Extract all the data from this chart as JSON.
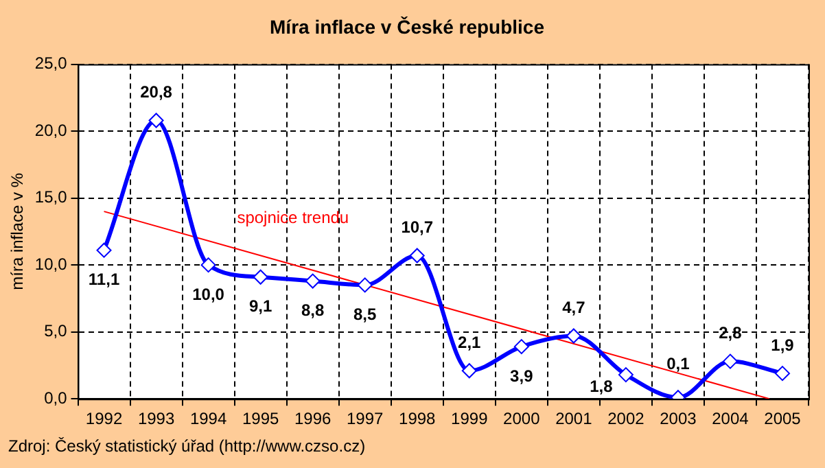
{
  "chart_data": {
    "type": "line",
    "title": "Míra inflace v České republice",
    "ylabel": "míra inflace v %",
    "x": [
      1992,
      1993,
      1994,
      1995,
      1996,
      1997,
      1998,
      1999,
      2000,
      2001,
      2002,
      2003,
      2004,
      2005
    ],
    "series": [
      {
        "color": "#0000ff",
        "values": [
          11.1,
          20.8,
          10.0,
          9.1,
          8.8,
          8.5,
          10.7,
          2.1,
          3.9,
          4.7,
          1.8,
          0.1,
          2.8,
          1.9
        ],
        "value_labels": [
          "11,1",
          "20,8",
          "10,0",
          "9,1",
          "8,8",
          "8,5",
          "10,7",
          "2,1",
          "3,9",
          "4,7",
          "1,8",
          "0,1",
          "2,8",
          "1,9"
        ],
        "marker": "diamond",
        "line_style": "solid"
      },
      {
        "name": "spojnice trendu",
        "color": "#ff0000",
        "x": [
          1992,
          2004.75
        ],
        "values": [
          14.0,
          0.0
        ],
        "marker": "none",
        "line_style": "solid"
      }
    ],
    "xlim": [
      1991.5,
      2005.5
    ],
    "xticks": [
      {
        "value": 1991.5,
        "label": null
      },
      1992,
      {
        "value": 1992.5,
        "label": null
      },
      1993,
      {
        "value": 1993.5,
        "label": null
      },
      1994,
      {
        "value": 1994.5,
        "label": null
      },
      1995,
      {
        "value": 1995.5,
        "label": null
      },
      1996,
      {
        "value": 1996.5,
        "label": null
      },
      1997,
      {
        "value": 1997.5,
        "label": null
      },
      1998,
      {
        "value": 1998.5,
        "label": null
      },
      1999,
      {
        "value": 1999.5,
        "label": null
      },
      2000,
      {
        "value": 2000.5,
        "label": null
      },
      2001,
      {
        "value": 2001.5,
        "label": null
      },
      2002,
      {
        "value": 2002.5,
        "label": null
      },
      2003,
      {
        "value": 2003.5,
        "label": null
      },
      2004,
      {
        "value": 2004.5,
        "label": null
      },
      2005,
      {
        "value": 2005.5,
        "label": null
      }
    ],
    "ylim": [
      0,
      25
    ],
    "yticks": [
      {
        "value": 0,
        "label": "0,0"
      },
      {
        "value": 5,
        "label": "5,0"
      },
      {
        "value": 10,
        "label": "10,0"
      },
      {
        "value": 15,
        "label": "15,0"
      },
      {
        "value": 20,
        "label": "20,0"
      },
      {
        "value": 25,
        "label": "25,0"
      }
    ],
    "grid": true,
    "legend": false,
    "annotations": [
      "Zdroj: Český statistický úřad (http://www.czso.cz)"
    ]
  }
}
